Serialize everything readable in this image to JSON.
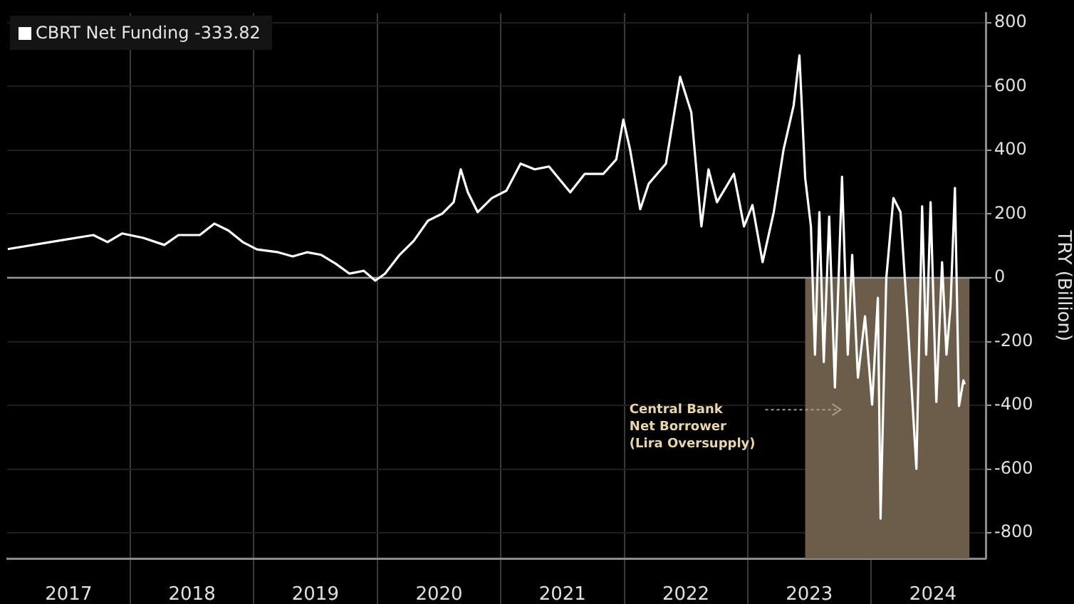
{
  "chart_data": {
    "type": "line",
    "ylabel": "TRY (Billion)",
    "x": [
      "2017-01-03",
      "2017-05-31",
      "2017-09-13",
      "2017-10-25",
      "2017-12-07",
      "2018-02-08",
      "2018-04-11",
      "2018-05-23",
      "2018-07-25",
      "2018-09-06",
      "2018-10-18",
      "2018-11-29",
      "2019-01-10",
      "2019-03-14",
      "2019-04-26",
      "2019-06-07",
      "2019-07-19",
      "2019-08-30",
      "2019-10-11",
      "2019-11-22",
      "2019-12-26",
      "2020-01-24",
      "2020-03-07",
      "2020-04-18",
      "2020-05-30",
      "2020-07-11",
      "2020-08-14",
      "2020-09-04",
      "2020-09-25",
      "2020-10-24",
      "2020-12-05",
      "2021-01-17",
      "2021-02-28",
      "2021-04-11",
      "2021-05-23",
      "2021-07-25",
      "2021-09-06",
      "2021-10-31",
      "2021-12-08",
      "2021-12-29",
      "2022-01-18",
      "2022-02-17",
      "2022-03-14",
      "2022-05-04",
      "2022-06-15",
      "2022-07-18",
      "2022-08-17",
      "2022-09-07",
      "2022-10-02",
      "2022-11-21",
      "2022-12-21",
      "2023-01-15",
      "2023-02-14",
      "2023-03-19",
      "2023-04-17",
      "2023-05-17",
      "2023-06-03",
      "2023-06-20",
      "2023-07-07",
      "2023-07-19",
      "2023-08-01",
      "2023-08-14",
      "2023-08-30",
      "2023-09-16",
      "2023-10-07",
      "2023-10-24",
      "2023-11-06",
      "2023-11-23",
      "2023-12-14",
      "2024-01-04",
      "2024-01-21",
      "2024-01-29",
      "2024-02-15",
      "2024-03-07",
      "2024-03-28",
      "2024-04-18",
      "2024-05-14",
      "2024-05-31",
      "2024-06-12",
      "2024-06-25",
      "2024-07-12",
      "2024-07-29",
      "2024-08-11",
      "2024-08-23",
      "2024-09-05",
      "2024-09-17",
      "2024-09-30",
      "2024-10-04"
    ],
    "series": [
      {
        "name": "CBRT Net Funding -333.82",
        "color": "#ffffff",
        "values": [
          90,
          116,
          134,
          112,
          139,
          125,
          103,
          134,
          134,
          170,
          148,
          112,
          89,
          80,
          67,
          80,
          72,
          45,
          13,
          22,
          -9,
          13,
          72,
          116,
          179,
          201,
          237,
          340,
          268,
          206,
          250,
          273,
          358,
          340,
          349,
          268,
          326,
          326,
          371,
          496,
          402,
          215,
          295,
          358,
          630,
          519,
          161,
          340,
          237,
          326,
          161,
          228,
          49,
          206,
          402,
          541,
          697,
          313,
          161,
          -241,
          206,
          -264,
          192,
          -344,
          317,
          -241,
          72,
          -313,
          -121,
          -398,
          -63,
          -755,
          0,
          250,
          206,
          -134,
          -599,
          224,
          -241,
          237,
          -389,
          49,
          -241,
          -89,
          282,
          -402,
          -322,
          -334
        ]
      }
    ],
    "xlim": [
      "2017-01-01",
      "2024-12-05"
    ],
    "xticks": [
      {
        "value": "2017-07-02",
        "label": "2017"
      },
      {
        "value": "2018-01-01",
        "label": null
      },
      {
        "value": "2018-07-02",
        "label": "2018"
      },
      {
        "value": "2019-01-01",
        "label": null
      },
      {
        "value": "2019-07-02",
        "label": "2019"
      },
      {
        "value": "2020-01-01",
        "label": null
      },
      {
        "value": "2020-07-02",
        "label": "2020"
      },
      {
        "value": "2021-01-01",
        "label": null
      },
      {
        "value": "2021-07-02",
        "label": "2021"
      },
      {
        "value": "2022-01-01",
        "label": null
      },
      {
        "value": "2022-07-02",
        "label": "2022"
      },
      {
        "value": "2023-01-01",
        "label": null
      },
      {
        "value": "2023-07-02",
        "label": "2023"
      },
      {
        "value": "2024-01-01",
        "label": null
      },
      {
        "value": "2024-07-02",
        "label": "2024"
      }
    ],
    "ylim": [
      -880,
      830
    ],
    "yticks": [
      -800,
      -600,
      -400,
      -200,
      0,
      200,
      400,
      600,
      800
    ],
    "ref_lines": [
      {
        "axis": "y",
        "value": 0,
        "color": "#9a9a9a"
      }
    ],
    "bands": [
      {
        "axis": "x",
        "from": "2023-06-20",
        "to": "2024-10-18",
        "label": "Central Bank\nNet Borrower\n(Lira Oversupply)",
        "color": "#6b5d4a"
      }
    ],
    "grid": true,
    "legend": "top left",
    "marker": "none",
    "line_style": "solid"
  }
}
